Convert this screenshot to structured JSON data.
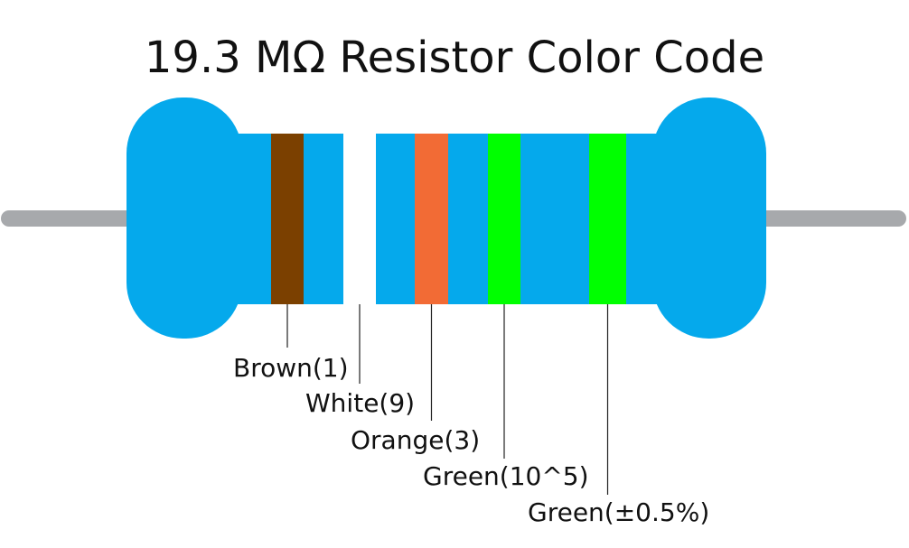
{
  "title": "19.3 MΩ Resistor Color Code",
  "bands": [
    {
      "label": "Brown(1)",
      "color": "#7b4000"
    },
    {
      "label": "White(9)",
      "color": "#ffffff"
    },
    {
      "label": "Orange(3)",
      "color": "#f26b35"
    },
    {
      "label": "Green(10^5)",
      "color": "#00ff00"
    },
    {
      "label": "Green(±0.5%)",
      "color": "#00ff00"
    }
  ]
}
